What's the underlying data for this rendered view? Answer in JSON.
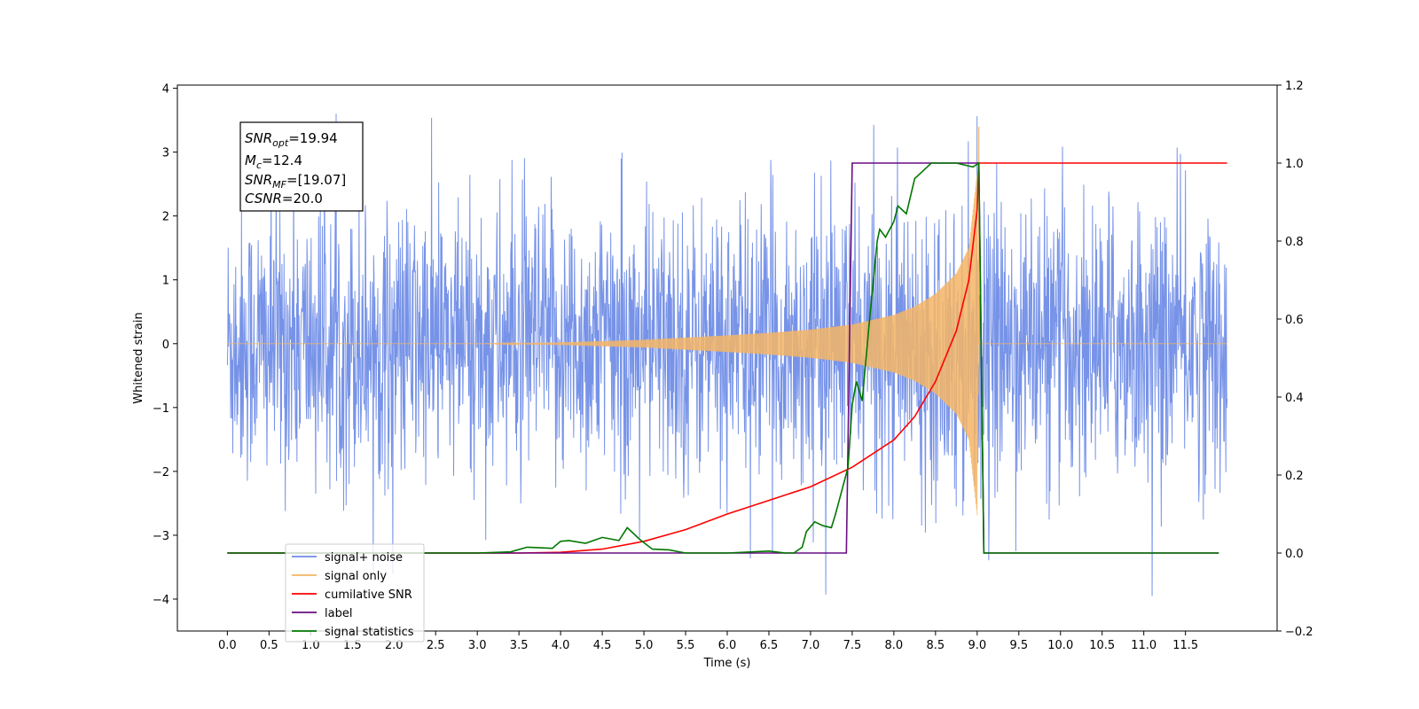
{
  "chart_data": {
    "type": "line",
    "xlabel": "Time (s)",
    "ylabel": "Whitened strain",
    "xlim": [
      -0.6,
      12.6
    ],
    "ylim_left": [
      -4.5,
      4.05
    ],
    "ylim_right": [
      -0.2,
      1.2
    ],
    "x_ticks": [
      0.0,
      0.5,
      1.0,
      1.5,
      2.0,
      2.5,
      3.0,
      3.5,
      4.0,
      4.5,
      5.0,
      5.5,
      6.0,
      6.5,
      7.0,
      7.5,
      8.0,
      8.5,
      9.0,
      9.5,
      10.0,
      10.5,
      11.0,
      11.5
    ],
    "x_tick_labels": [
      "0.0",
      "0.5",
      "1.0",
      "1.5",
      "2.0",
      "2.5",
      "3.0",
      "3.5",
      "4.0",
      "4.5",
      "5.0",
      "5.5",
      "6.0",
      "6.5",
      "7.0",
      "7.5",
      "8.0",
      "8.5",
      "9.0",
      "9.5",
      "10.0",
      "10.5",
      "11.0",
      "11.5"
    ],
    "y_left_ticks": [
      4,
      3,
      2,
      1,
      0,
      -1,
      -2,
      -3,
      -4
    ],
    "y_left_tick_labels": [
      "4",
      "3",
      "2",
      "1",
      "0",
      "−1",
      "−2",
      "−3",
      "−4"
    ],
    "y_right_ticks": [
      1.2,
      1.0,
      0.8,
      0.6,
      0.4,
      0.2,
      0.0,
      -0.2
    ],
    "y_right_tick_labels": [
      "1.2",
      "1.0",
      "0.8",
      "0.6",
      "0.4",
      "0.2",
      "0.0",
      "−0.2"
    ],
    "grid": false,
    "legend_position": "bottom-left",
    "colors": {
      "signal_noise": "#6b8ae6",
      "signal_only": "#f5b565",
      "cumulative_snr": "#ff0000",
      "label": "#6a0d83",
      "signal_statistics": "#007700"
    },
    "annotation": {
      "snr_opt": {
        "base": "SNR",
        "sub": "opt",
        "value": "=19.94"
      },
      "mc": {
        "base": "M",
        "sub": "c",
        "value": "=12.4"
      },
      "snr_mf": {
        "base": "SNR",
        "sub": "MF",
        "value": "=[19.07]"
      },
      "csnr": {
        "base": "CSNR",
        "value": "=20.0"
      }
    },
    "series": [
      {
        "name": "signal+ noise",
        "axis": "left",
        "description": "dense whitened noise time series, typical amplitude about 1.5, peaks near 3.5",
        "x_range": [
          0.0,
          12.0
        ],
        "envelope": 1.5,
        "peak": 3.6
      },
      {
        "name": "signal only",
        "axis": "left",
        "description": "chirp growing in amplitude until merger near 9.0 s",
        "x_range": [
          0.0,
          12.0
        ],
        "merger_time": 9.02,
        "x": [
          0,
          1,
          2,
          3,
          4,
          5,
          6,
          6.5,
          7,
          7.5,
          8,
          8.25,
          8.5,
          8.75,
          8.9,
          9.0,
          9.02,
          9.05
        ],
        "envelope": [
          0.0,
          0.0,
          0.0,
          0.0,
          0.02,
          0.06,
          0.13,
          0.17,
          0.22,
          0.3,
          0.45,
          0.58,
          0.78,
          1.1,
          1.5,
          2.7,
          0.0,
          0.0
        ]
      },
      {
        "name": "cumilative SNR",
        "axis": "right",
        "x": [
          0.0,
          3.5,
          4.0,
          4.5,
          5.0,
          5.5,
          6.0,
          6.5,
          7.0,
          7.5,
          8.0,
          8.25,
          8.5,
          8.75,
          8.9,
          9.0,
          9.02,
          12.0
        ],
        "values": [
          0.0,
          0.0,
          0.002,
          0.01,
          0.03,
          0.06,
          0.1,
          0.135,
          0.17,
          0.22,
          0.29,
          0.35,
          0.44,
          0.57,
          0.7,
          0.88,
          1.0,
          1.0
        ]
      },
      {
        "name": "label",
        "axis": "right",
        "x": [
          0.0,
          7.43,
          7.5,
          9.02,
          9.08,
          11.9
        ],
        "values": [
          0.0,
          0.0,
          1.0,
          1.0,
          0.0,
          0.0
        ]
      },
      {
        "name": "signal statistics",
        "axis": "right",
        "x": [
          0.0,
          2.0,
          3.0,
          3.4,
          3.6,
          3.9,
          4.0,
          4.1,
          4.3,
          4.5,
          4.7,
          4.8,
          4.95,
          5.1,
          5.3,
          5.5,
          6.0,
          6.5,
          6.7,
          6.8,
          6.9,
          6.95,
          7.05,
          7.15,
          7.25,
          7.3,
          7.35,
          7.45,
          7.5,
          7.55,
          7.62,
          7.7,
          7.8,
          7.83,
          7.9,
          8.0,
          8.05,
          8.15,
          8.25,
          8.35,
          8.45,
          8.55,
          8.75,
          8.95,
          9.02,
          9.08,
          11.9
        ],
        "values": [
          0.0,
          0.0,
          0.0,
          0.003,
          0.015,
          0.012,
          0.03,
          0.032,
          0.025,
          0.04,
          0.032,
          0.065,
          0.035,
          0.01,
          0.008,
          0.0,
          0.0,
          0.005,
          0.0,
          0.0,
          0.015,
          0.055,
          0.08,
          0.07,
          0.065,
          0.1,
          0.14,
          0.22,
          0.38,
          0.44,
          0.39,
          0.58,
          0.8,
          0.83,
          0.81,
          0.85,
          0.89,
          0.87,
          0.96,
          0.98,
          1.0,
          1.0,
          1.0,
          0.99,
          1.0,
          0.0,
          0.0
        ]
      }
    ]
  }
}
